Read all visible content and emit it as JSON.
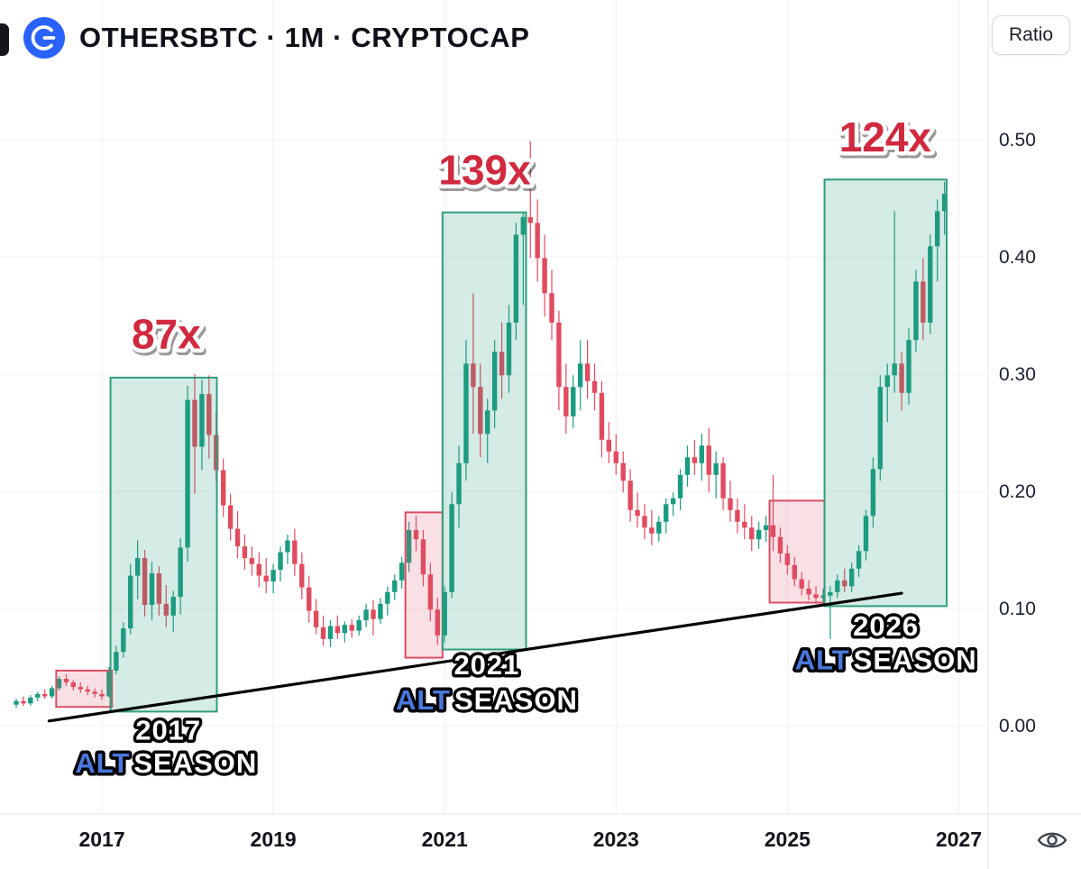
{
  "header": {
    "title": "OTHERSBTC · 1M · CRYPTOCAP",
    "symbol": "OTHERSBTC",
    "interval": "1M",
    "source": "CRYPTOCAP",
    "logo_color": "#2962ff",
    "ratio_button_label": "Ratio"
  },
  "chart_data": {
    "type": "candlestick",
    "title": "OTHERSBTC · 1M · CRYPTOCAP",
    "x_unit": "months (index 0 = leftmost candle, 12 candles per year, index 12 = 2017 tick)",
    "ylim": [
      0.0,
      0.52
    ],
    "grid": "faint",
    "y_axis": {
      "side": "right",
      "ticks": [
        {
          "label": "0.00",
          "value": 0.0
        },
        {
          "label": "0.10",
          "value": 0.1
        },
        {
          "label": "0.20",
          "value": 0.2
        },
        {
          "label": "0.30",
          "value": 0.3
        },
        {
          "label": "0.40",
          "value": 0.4
        },
        {
          "label": "0.50",
          "value": 0.5
        }
      ]
    },
    "x_axis": {
      "ticks": [
        {
          "label": "2017",
          "month": 12
        },
        {
          "label": "2019",
          "month": 36
        },
        {
          "label": "2021",
          "month": 60
        },
        {
          "label": "2023",
          "month": 84
        },
        {
          "label": "2025",
          "month": 108
        },
        {
          "label": "2027",
          "month": 132
        }
      ]
    },
    "candles_format": [
      "open",
      "high",
      "low",
      "close"
    ],
    "candles": [
      [
        0.018,
        0.023,
        0.015,
        0.021
      ],
      [
        0.021,
        0.025,
        0.017,
        0.019
      ],
      [
        0.019,
        0.026,
        0.017,
        0.024
      ],
      [
        0.024,
        0.029,
        0.021,
        0.027
      ],
      [
        0.027,
        0.031,
        0.023,
        0.025
      ],
      [
        0.025,
        0.034,
        0.023,
        0.032
      ],
      [
        0.032,
        0.042,
        0.03,
        0.04
      ],
      [
        0.04,
        0.044,
        0.034,
        0.037
      ],
      [
        0.037,
        0.039,
        0.03,
        0.033
      ],
      [
        0.033,
        0.037,
        0.028,
        0.031
      ],
      [
        0.031,
        0.034,
        0.026,
        0.029
      ],
      [
        0.029,
        0.032,
        0.024,
        0.027
      ],
      [
        0.027,
        0.031,
        0.022,
        0.025
      ],
      [
        0.025,
        0.05,
        0.024,
        0.047
      ],
      [
        0.047,
        0.068,
        0.044,
        0.063
      ],
      [
        0.063,
        0.088,
        0.058,
        0.083
      ],
      [
        0.083,
        0.138,
        0.078,
        0.128
      ],
      [
        0.128,
        0.158,
        0.108,
        0.143
      ],
      [
        0.143,
        0.15,
        0.093,
        0.103
      ],
      [
        0.103,
        0.14,
        0.09,
        0.13
      ],
      [
        0.13,
        0.136,
        0.094,
        0.104
      ],
      [
        0.104,
        0.12,
        0.084,
        0.094
      ],
      [
        0.094,
        0.115,
        0.08,
        0.11
      ],
      [
        0.11,
        0.16,
        0.095,
        0.152
      ],
      [
        0.152,
        0.29,
        0.14,
        0.278
      ],
      [
        0.278,
        0.3,
        0.198,
        0.238
      ],
      [
        0.238,
        0.295,
        0.218,
        0.283
      ],
      [
        0.283,
        0.299,
        0.228,
        0.248
      ],
      [
        0.248,
        0.268,
        0.208,
        0.218
      ],
      [
        0.218,
        0.228,
        0.178,
        0.188
      ],
      [
        0.188,
        0.198,
        0.158,
        0.168
      ],
      [
        0.168,
        0.183,
        0.143,
        0.153
      ],
      [
        0.153,
        0.163,
        0.133,
        0.143
      ],
      [
        0.143,
        0.153,
        0.128,
        0.138
      ],
      [
        0.138,
        0.148,
        0.118,
        0.128
      ],
      [
        0.128,
        0.143,
        0.113,
        0.123
      ],
      [
        0.123,
        0.138,
        0.113,
        0.133
      ],
      [
        0.133,
        0.153,
        0.123,
        0.148
      ],
      [
        0.148,
        0.163,
        0.138,
        0.158
      ],
      [
        0.158,
        0.168,
        0.128,
        0.138
      ],
      [
        0.138,
        0.148,
        0.108,
        0.118
      ],
      [
        0.118,
        0.128,
        0.088,
        0.098
      ],
      [
        0.098,
        0.108,
        0.078,
        0.084
      ],
      [
        0.084,
        0.094,
        0.068,
        0.074
      ],
      [
        0.074,
        0.09,
        0.067,
        0.085
      ],
      [
        0.085,
        0.094,
        0.074,
        0.079
      ],
      [
        0.079,
        0.089,
        0.071,
        0.086
      ],
      [
        0.086,
        0.091,
        0.075,
        0.081
      ],
      [
        0.081,
        0.094,
        0.077,
        0.09
      ],
      [
        0.09,
        0.104,
        0.084,
        0.099
      ],
      [
        0.099,
        0.107,
        0.077,
        0.091
      ],
      [
        0.091,
        0.109,
        0.087,
        0.104
      ],
      [
        0.104,
        0.119,
        0.094,
        0.114
      ],
      [
        0.114,
        0.129,
        0.107,
        0.124
      ],
      [
        0.124,
        0.144,
        0.117,
        0.139
      ],
      [
        0.139,
        0.174,
        0.131,
        0.167
      ],
      [
        0.167,
        0.179,
        0.149,
        0.159
      ],
      [
        0.159,
        0.167,
        0.119,
        0.129
      ],
      [
        0.129,
        0.139,
        0.089,
        0.099
      ],
      [
        0.099,
        0.109,
        0.069,
        0.077
      ],
      [
        0.077,
        0.119,
        0.071,
        0.114
      ],
      [
        0.114,
        0.199,
        0.109,
        0.189
      ],
      [
        0.189,
        0.239,
        0.169,
        0.224
      ],
      [
        0.224,
        0.329,
        0.209,
        0.309
      ],
      [
        0.309,
        0.369,
        0.249,
        0.289
      ],
      [
        0.289,
        0.309,
        0.229,
        0.249
      ],
      [
        0.249,
        0.279,
        0.224,
        0.269
      ],
      [
        0.269,
        0.329,
        0.254,
        0.319
      ],
      [
        0.319,
        0.344,
        0.279,
        0.299
      ],
      [
        0.299,
        0.359,
        0.284,
        0.344
      ],
      [
        0.344,
        0.429,
        0.329,
        0.419
      ],
      [
        0.419,
        0.439,
        0.359,
        0.434
      ],
      [
        0.434,
        0.499,
        0.399,
        0.429
      ],
      [
        0.429,
        0.449,
        0.379,
        0.399
      ],
      [
        0.399,
        0.419,
        0.349,
        0.369
      ],
      [
        0.369,
        0.389,
        0.329,
        0.344
      ],
      [
        0.344,
        0.354,
        0.269,
        0.289
      ],
      [
        0.289,
        0.309,
        0.249,
        0.264
      ],
      [
        0.264,
        0.299,
        0.254,
        0.289
      ],
      [
        0.289,
        0.329,
        0.269,
        0.309
      ],
      [
        0.309,
        0.329,
        0.279,
        0.294
      ],
      [
        0.294,
        0.309,
        0.269,
        0.284
      ],
      [
        0.284,
        0.294,
        0.229,
        0.244
      ],
      [
        0.244,
        0.259,
        0.224,
        0.234
      ],
      [
        0.234,
        0.249,
        0.214,
        0.224
      ],
      [
        0.224,
        0.234,
        0.199,
        0.209
      ],
      [
        0.209,
        0.219,
        0.174,
        0.184
      ],
      [
        0.184,
        0.199,
        0.169,
        0.179
      ],
      [
        0.179,
        0.189,
        0.159,
        0.169
      ],
      [
        0.169,
        0.184,
        0.154,
        0.164
      ],
      [
        0.164,
        0.179,
        0.157,
        0.174
      ],
      [
        0.174,
        0.194,
        0.164,
        0.189
      ],
      [
        0.189,
        0.199,
        0.179,
        0.194
      ],
      [
        0.194,
        0.219,
        0.184,
        0.214
      ],
      [
        0.214,
        0.239,
        0.204,
        0.229
      ],
      [
        0.229,
        0.244,
        0.214,
        0.224
      ],
      [
        0.224,
        0.249,
        0.209,
        0.239
      ],
      [
        0.239,
        0.254,
        0.199,
        0.214
      ],
      [
        0.214,
        0.234,
        0.194,
        0.224
      ],
      [
        0.224,
        0.229,
        0.184,
        0.194
      ],
      [
        0.194,
        0.209,
        0.174,
        0.184
      ],
      [
        0.184,
        0.194,
        0.164,
        0.174
      ],
      [
        0.174,
        0.189,
        0.159,
        0.169
      ],
      [
        0.169,
        0.179,
        0.149,
        0.159
      ],
      [
        0.159,
        0.174,
        0.151,
        0.167
      ],
      [
        0.167,
        0.179,
        0.157,
        0.171
      ],
      [
        0.171,
        0.214,
        0.149,
        0.161
      ],
      [
        0.161,
        0.169,
        0.139,
        0.147
      ],
      [
        0.147,
        0.154,
        0.129,
        0.137
      ],
      [
        0.137,
        0.144,
        0.119,
        0.125
      ],
      [
        0.125,
        0.131,
        0.111,
        0.117
      ],
      [
        0.117,
        0.124,
        0.107,
        0.112
      ],
      [
        0.112,
        0.119,
        0.104,
        0.109
      ],
      [
        0.109,
        0.117,
        0.103,
        0.111
      ],
      [
        0.111,
        0.119,
        0.074,
        0.114
      ],
      [
        0.114,
        0.129,
        0.109,
        0.124
      ],
      [
        0.124,
        0.134,
        0.114,
        0.119
      ],
      [
        0.119,
        0.139,
        0.114,
        0.134
      ],
      [
        0.134,
        0.154,
        0.127,
        0.149
      ],
      [
        0.149,
        0.184,
        0.141,
        0.179
      ],
      [
        0.179,
        0.229,
        0.169,
        0.219
      ],
      [
        0.219,
        0.299,
        0.209,
        0.289
      ],
      [
        0.289,
        0.309,
        0.259,
        0.299
      ],
      [
        0.299,
        0.439,
        0.284,
        0.309
      ],
      [
        0.309,
        0.319,
        0.269,
        0.284
      ],
      [
        0.284,
        0.339,
        0.274,
        0.329
      ],
      [
        0.329,
        0.389,
        0.319,
        0.379
      ],
      [
        0.379,
        0.399,
        0.329,
        0.344
      ],
      [
        0.344,
        0.419,
        0.334,
        0.409
      ],
      [
        0.409,
        0.449,
        0.379,
        0.439
      ],
      [
        0.439,
        0.464,
        0.419,
        0.454
      ]
    ],
    "boxes": [
      {
        "name": "2017-accumulation",
        "type": "pink",
        "m1": 5.6,
        "m2": 13.4,
        "v1": 0.016,
        "v2": 0.047
      },
      {
        "name": "2017-altseason",
        "type": "green",
        "m1": 13.2,
        "m2": 28.1,
        "v1": 0.012,
        "v2": 0.297
      },
      {
        "name": "2021-accumulation",
        "type": "pink",
        "m1": 54.5,
        "m2": 59.7,
        "v1": 0.058,
        "v2": 0.182
      },
      {
        "name": "2021-altseason",
        "type": "green",
        "m1": 59.7,
        "m2": 71.4,
        "v1": 0.065,
        "v2": 0.438
      },
      {
        "name": "2026-accumulation",
        "type": "pink",
        "m1": 105.5,
        "m2": 113.2,
        "v1": 0.105,
        "v2": 0.192
      },
      {
        "name": "2026-altseason",
        "type": "green",
        "m1": 113.2,
        "m2": 130.3,
        "v1": 0.102,
        "v2": 0.466
      }
    ],
    "trendline": {
      "m1": 4.6,
      "v1": 0.004,
      "m2": 124.0,
      "v2": 0.113
    },
    "annotations": {
      "multipliers": [
        {
          "text": "87x",
          "month": 21.0,
          "value": 0.322
        },
        {
          "text": "139x",
          "month": 65.6,
          "value": 0.462
        },
        {
          "text": "124x",
          "month": 121.7,
          "value": 0.49
        }
      ],
      "altseasons": [
        {
          "year": "2017",
          "alt": "ALT",
          "season": "SEASON",
          "year_month": 21.3,
          "year_value": -0.012,
          "label_month": 21.0,
          "label_value": -0.04
        },
        {
          "year": "2021",
          "alt": "ALT",
          "season": "SEASON",
          "year_month": 65.9,
          "year_value": 0.044,
          "label_month": 65.9,
          "label_value": 0.014
        },
        {
          "year": "2026",
          "alt": "ALT",
          "season": "SEASON",
          "year_month": 121.8,
          "year_value": 0.077,
          "label_month": 121.8,
          "label_value": 0.048
        }
      ]
    },
    "style": {
      "up": "#1a9c81",
      "down": "#e14b5f",
      "grid": "#eef0f3",
      "axis_separator": "#e2e5ea",
      "trendline": "#000000",
      "multiplier_red": "#d1293f",
      "alt_blue": "#4a79dd",
      "season_white": "#ffffff",
      "box_green": {
        "fill": "#2f9d7e",
        "fill_opacity": 0.2,
        "border": "#2f9d7e"
      },
      "box_pink": {
        "fill": "#e05570",
        "fill_opacity": 0.18,
        "border": "#d94f63"
      }
    }
  },
  "footer_icons": {
    "eye_icon": "quick-view-eye"
  }
}
